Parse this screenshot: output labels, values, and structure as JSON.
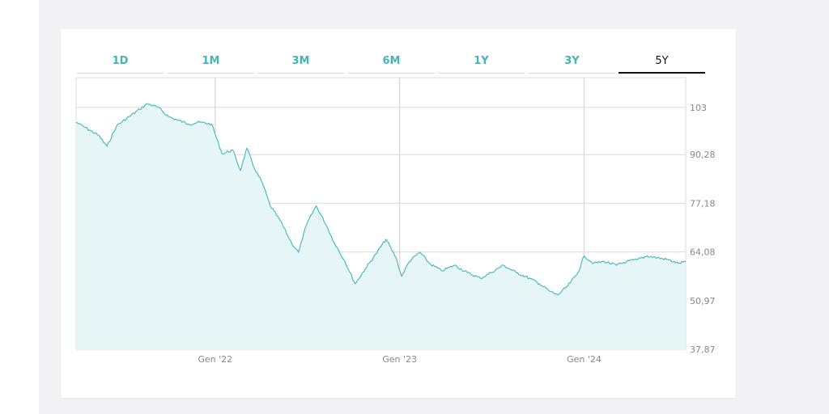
{
  "tabs": [
    {
      "label": "1D"
    },
    {
      "label": "1M"
    },
    {
      "label": "3M"
    },
    {
      "label": "6M"
    },
    {
      "label": "1Y"
    },
    {
      "label": "3Y"
    },
    {
      "label": "5Y"
    }
  ],
  "active_tab": "5Y",
  "colors": {
    "accent": "#45b4b4",
    "line": "#4dbcbc",
    "fill": "#e6f6f6",
    "grid": "#dcdcdc"
  },
  "chart_data": {
    "type": "area",
    "title": "",
    "xlabel": "",
    "ylabel": "",
    "y_axis_side": "right",
    "ylim": [
      37.87,
      111
    ],
    "xlim": [
      "2021-04-01",
      "2024-07-20"
    ],
    "yticks": [
      {
        "value": 103,
        "label": "103"
      },
      {
        "value": 90.28,
        "label": "90,28"
      },
      {
        "value": 77.18,
        "label": "77,18"
      },
      {
        "value": 64.08,
        "label": "64,08"
      },
      {
        "value": 50.97,
        "label": "50,97"
      },
      {
        "value": 37.87,
        "label": "37,87"
      }
    ],
    "xticks": [
      {
        "date": "2022-01-01",
        "label": "Gen '22"
      },
      {
        "date": "2023-01-01",
        "label": "Gen '23"
      },
      {
        "date": "2024-01-01",
        "label": "Gen '24"
      }
    ],
    "grid": true,
    "x": [
      "2021-04-01",
      "2021-04-20",
      "2021-05-15",
      "2021-06-01",
      "2021-06-20",
      "2021-07-15",
      "2021-08-05",
      "2021-08-20",
      "2021-09-10",
      "2021-10-01",
      "2021-10-20",
      "2021-11-10",
      "2021-12-01",
      "2021-12-25",
      "2022-01-15",
      "2022-02-05",
      "2022-02-20",
      "2022-03-05",
      "2022-03-20",
      "2022-04-05",
      "2022-04-20",
      "2022-05-10",
      "2022-06-01",
      "2022-06-15",
      "2022-07-01",
      "2022-07-20",
      "2022-08-10",
      "2022-08-25",
      "2022-09-15",
      "2022-10-05",
      "2022-10-25",
      "2022-11-15",
      "2022-12-05",
      "2022-12-25",
      "2023-01-05",
      "2023-01-20",
      "2023-02-10",
      "2023-03-01",
      "2023-03-25",
      "2023-04-20",
      "2023-05-15",
      "2023-06-10",
      "2023-07-01",
      "2023-07-25",
      "2023-08-20",
      "2023-09-15",
      "2023-10-05",
      "2023-10-25",
      "2023-11-10",
      "2023-11-30",
      "2023-12-20",
      "2024-01-01",
      "2024-01-20",
      "2024-02-10",
      "2024-03-05",
      "2024-03-25",
      "2024-04-15",
      "2024-05-05",
      "2024-05-25",
      "2024-06-15",
      "2024-07-05",
      "2024-07-20"
    ],
    "series": [
      {
        "values": [
          99.0,
          97.5,
          95.5,
          92.5,
          98.0,
          100.5,
          102.5,
          104.0,
          103.0,
          100.5,
          99.5,
          98.5,
          99.0,
          98.5,
          90.5,
          91.5,
          86.0,
          92.0,
          86.5,
          82.5,
          76.5,
          72.5,
          66.5,
          64.0,
          71.5,
          76.5,
          71.0,
          66.5,
          61.5,
          55.5,
          59.5,
          63.5,
          67.5,
          62.5,
          57.5,
          61.5,
          64.0,
          61.0,
          59.0,
          60.5,
          58.5,
          57.0,
          58.5,
          60.5,
          58.5,
          57.0,
          55.5,
          53.5,
          52.5,
          55.0,
          58.5,
          63.0,
          61.0,
          61.5,
          60.5,
          61.5,
          62.0,
          63.0,
          62.5,
          62.0,
          61.0,
          61.5
        ]
      }
    ]
  }
}
